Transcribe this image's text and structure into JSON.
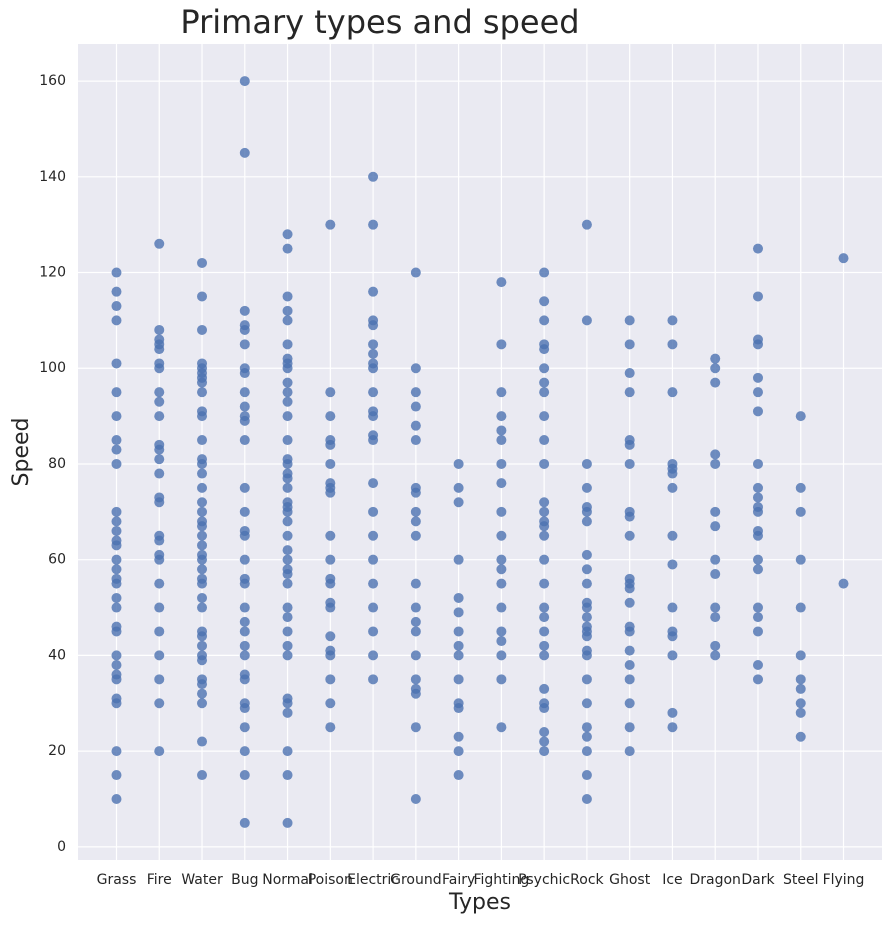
{
  "chart_data": {
    "type": "scatter",
    "title": "Primary types and speed",
    "x_label": "Types",
    "y_label": "Speed",
    "categories": [
      "Grass",
      "Fire",
      "Water",
      "Bug",
      "Normal",
      "Poison",
      "Electric",
      "Ground",
      "Fairy",
      "Fighting",
      "Psychic",
      "Rock",
      "Ghost",
      "Ice",
      "Dragon",
      "Dark",
      "Steel",
      "Flying"
    ],
    "values": [
      [
        120,
        116,
        113,
        110,
        101,
        95,
        90,
        85,
        83,
        80,
        70,
        68,
        66,
        64,
        63,
        60,
        58,
        56,
        55,
        52,
        50,
        46,
        45,
        40,
        38,
        36,
        35,
        31,
        30,
        20,
        15,
        10
      ],
      [
        126,
        108,
        106,
        105,
        104,
        101,
        100,
        95,
        93,
        90,
        84,
        83,
        81,
        78,
        73,
        72,
        65,
        64,
        61,
        60,
        55,
        50,
        45,
        40,
        35,
        30,
        20
      ],
      [
        122,
        115,
        108,
        101,
        100,
        99,
        98,
        97,
        95,
        91,
        90,
        85,
        81,
        80,
        78,
        75,
        72,
        70,
        68,
        67,
        65,
        63,
        61,
        60,
        58,
        56,
        55,
        52,
        50,
        45,
        44,
        42,
        40,
        39,
        35,
        34,
        32,
        30,
        22,
        15
      ],
      [
        160,
        145,
        112,
        109,
        108,
        105,
        100,
        99,
        95,
        92,
        90,
        89,
        85,
        75,
        70,
        66,
        65,
        60,
        56,
        55,
        50,
        47,
        45,
        42,
        40,
        36,
        35,
        30,
        29,
        25,
        20,
        15,
        5
      ],
      [
        128,
        125,
        115,
        112,
        110,
        105,
        102,
        101,
        100,
        97,
        95,
        93,
        90,
        85,
        81,
        80,
        78,
        77,
        75,
        72,
        71,
        70,
        68,
        65,
        62,
        60,
        58,
        57,
        55,
        50,
        48,
        45,
        42,
        40,
        31,
        30,
        28,
        20,
        15,
        5
      ],
      [
        130,
        95,
        90,
        85,
        84,
        80,
        76,
        75,
        74,
        65,
        60,
        56,
        55,
        51,
        50,
        44,
        41,
        40,
        35,
        30,
        25
      ],
      [
        140,
        130,
        116,
        110,
        109,
        105,
        103,
        101,
        100,
        95,
        91,
        90,
        86,
        85,
        76,
        70,
        65,
        60,
        55,
        50,
        45,
        40,
        35
      ],
      [
        120,
        100,
        95,
        92,
        88,
        85,
        75,
        74,
        70,
        68,
        65,
        55,
        50,
        47,
        45,
        40,
        35,
        33,
        32,
        25,
        10
      ],
      [
        80,
        75,
        72,
        60,
        52,
        49,
        45,
        42,
        40,
        35,
        30,
        29,
        23,
        20,
        15
      ],
      [
        118,
        105,
        95,
        90,
        87,
        85,
        80,
        76,
        70,
        65,
        60,
        58,
        55,
        50,
        45,
        43,
        40,
        35,
        25
      ],
      [
        120,
        114,
        110,
        105,
        104,
        100,
        97,
        95,
        90,
        85,
        80,
        72,
        70,
        68,
        67,
        65,
        60,
        55,
        50,
        48,
        45,
        42,
        40,
        33,
        30,
        29,
        24,
        22,
        20
      ],
      [
        130,
        110,
        80,
        75,
        71,
        70,
        68,
        61,
        58,
        55,
        51,
        50,
        48,
        46,
        45,
        44,
        41,
        40,
        35,
        30,
        25,
        23,
        20,
        15,
        10
      ],
      [
        110,
        105,
        99,
        95,
        85,
        84,
        80,
        70,
        69,
        65,
        56,
        55,
        54,
        51,
        46,
        45,
        41,
        38,
        35,
        30,
        25,
        20
      ],
      [
        110,
        105,
        95,
        80,
        79,
        78,
        75,
        65,
        59,
        50,
        45,
        44,
        40,
        28,
        25
      ],
      [
        102,
        100,
        97,
        82,
        80,
        70,
        67,
        60,
        57,
        50,
        48,
        42,
        40
      ],
      [
        125,
        115,
        106,
        105,
        98,
        95,
        91,
        80,
        75,
        73,
        71,
        70,
        66,
        65,
        60,
        58,
        50,
        48,
        45,
        38,
        35
      ],
      [
        90,
        75,
        70,
        60,
        50,
        40,
        35,
        33,
        30,
        28,
        23
      ],
      [
        123,
        55
      ]
    ],
    "color": "#4c72b0",
    "ylim": [
      -2.75,
      167.75
    ],
    "yticks": [
      0,
      20,
      40,
      60,
      80,
      100,
      120,
      140,
      160
    ],
    "grid": true
  }
}
